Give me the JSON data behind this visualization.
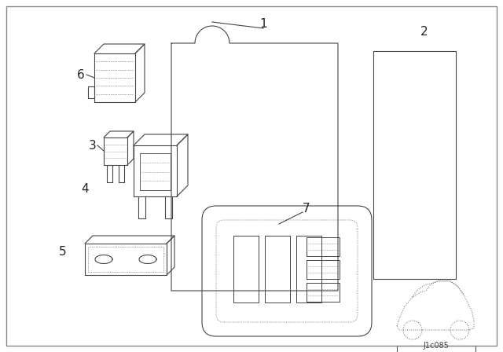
{
  "bg_color": "#ffffff",
  "line_color": "#444444",
  "label_color": "#222222",
  "diagram_id": "J1c085",
  "lw": 0.8
}
